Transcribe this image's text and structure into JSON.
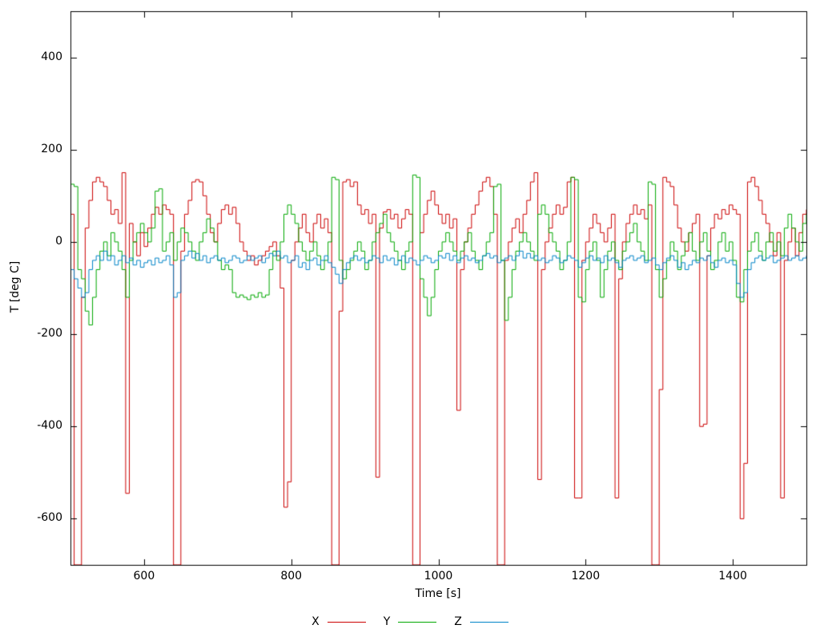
{
  "chart_data": {
    "type": "line",
    "title": "",
    "xlabel": "Time [s]",
    "ylabel": "T [deg C]",
    "xlim": [
      500,
      1500
    ],
    "ylim": [
      -700,
      500
    ],
    "x_ticks": [
      600,
      800,
      1000,
      1200,
      1400
    ],
    "y_ticks": [
      -600,
      -400,
      -200,
      0,
      200,
      400
    ],
    "grid": false,
    "legend_position": "bottom-center",
    "line_style": "steps",
    "x_start": 500,
    "x_step": 5,
    "series": [
      {
        "name": "X",
        "color": "#cc0000",
        "values": [
          60,
          -700,
          -700,
          -120,
          30,
          90,
          130,
          140,
          130,
          120,
          90,
          60,
          70,
          40,
          150,
          -545,
          40,
          0,
          -30,
          20,
          -10,
          30,
          60,
          75,
          60,
          80,
          70,
          60,
          -700,
          -700,
          -20,
          60,
          90,
          130,
          135,
          130,
          100,
          60,
          20,
          0,
          40,
          70,
          80,
          60,
          75,
          40,
          0,
          -20,
          -40,
          -30,
          -50,
          -40,
          -30,
          -20,
          -10,
          0,
          -30,
          -100,
          -575,
          -520,
          -40,
          0,
          30,
          60,
          20,
          0,
          40,
          60,
          30,
          50,
          20,
          -700,
          -700,
          -150,
          130,
          135,
          120,
          130,
          80,
          60,
          70,
          40,
          60,
          -510,
          30,
          65,
          70,
          50,
          60,
          30,
          50,
          70,
          60,
          -700,
          -700,
          20,
          60,
          90,
          110,
          80,
          60,
          40,
          60,
          30,
          50,
          -365,
          -60,
          0,
          30,
          60,
          80,
          110,
          130,
          140,
          120,
          60,
          -700,
          -700,
          -40,
          0,
          30,
          50,
          20,
          60,
          90,
          130,
          150,
          -515,
          -60,
          0,
          30,
          60,
          80,
          60,
          75,
          130,
          140,
          -555,
          -555,
          -40,
          0,
          30,
          60,
          40,
          20,
          0,
          30,
          60,
          -555,
          -80,
          0,
          40,
          60,
          80,
          60,
          70,
          50,
          80,
          -700,
          -700,
          -320,
          140,
          130,
          120,
          80,
          30,
          0,
          -20,
          20,
          40,
          60,
          -400,
          -395,
          -30,
          30,
          60,
          50,
          70,
          60,
          80,
          70,
          60,
          -600,
          -480,
          130,
          140,
          120,
          90,
          60,
          40,
          0,
          -30,
          20,
          -555,
          -40,
          0,
          30,
          -30,
          20,
          60,
          70
        ]
      },
      {
        "name": "Y",
        "color": "#00a800",
        "values": [
          125,
          120,
          -60,
          -80,
          -150,
          -180,
          -120,
          -60,
          -20,
          0,
          -30,
          20,
          0,
          -20,
          -60,
          -120,
          -40,
          0,
          20,
          40,
          20,
          0,
          30,
          110,
          115,
          -20,
          0,
          20,
          -40,
          0,
          30,
          20,
          0,
          -20,
          -40,
          0,
          20,
          50,
          30,
          0,
          -40,
          -60,
          -50,
          -60,
          -110,
          -120,
          -115,
          -120,
          -125,
          -115,
          -120,
          -110,
          -120,
          -115,
          -60,
          -20,
          -40,
          0,
          60,
          80,
          60,
          40,
          0,
          -20,
          -40,
          -20,
          0,
          -30,
          -60,
          -40,
          0,
          140,
          135,
          -40,
          -80,
          -60,
          -40,
          -20,
          0,
          -20,
          -60,
          -40,
          0,
          20,
          40,
          60,
          20,
          0,
          -20,
          -40,
          -60,
          -20,
          0,
          145,
          140,
          -80,
          -120,
          -160,
          -120,
          -60,
          -20,
          0,
          20,
          0,
          -20,
          -40,
          -20,
          0,
          20,
          -20,
          -40,
          -60,
          -30,
          0,
          20,
          120,
          125,
          -40,
          -170,
          -120,
          -60,
          -20,
          0,
          20,
          0,
          -20,
          -40,
          60,
          80,
          60,
          20,
          0,
          -20,
          -60,
          -40,
          0,
          140,
          135,
          -120,
          -130,
          -60,
          -20,
          0,
          -40,
          -120,
          -60,
          -20,
          0,
          -40,
          -60,
          -20,
          0,
          20,
          40,
          0,
          -20,
          -40,
          130,
          125,
          -60,
          -120,
          -80,
          -40,
          0,
          -20,
          -60,
          -30,
          0,
          20,
          -20,
          -40,
          0,
          20,
          -20,
          -60,
          -40,
          0,
          20,
          -20,
          0,
          -40,
          -120,
          -130,
          -60,
          -20,
          0,
          20,
          -20,
          -40,
          0,
          20,
          -20,
          0,
          -30,
          30,
          60,
          30,
          0,
          -20,
          40,
          60
        ]
      },
      {
        "name": "Z",
        "color": "#0084c8",
        "values": [
          -60,
          -80,
          -100,
          -120,
          -110,
          -60,
          -40,
          -30,
          -40,
          -20,
          -40,
          -30,
          -50,
          -40,
          -30,
          -45,
          -35,
          -50,
          -40,
          -55,
          -45,
          -40,
          -50,
          -35,
          -45,
          -40,
          -30,
          -50,
          -120,
          -110,
          -40,
          -30,
          -20,
          -35,
          -25,
          -40,
          -30,
          -45,
          -35,
          -30,
          -40,
          -35,
          -45,
          -40,
          -30,
          -35,
          -45,
          -40,
          -30,
          -40,
          -35,
          -30,
          -45,
          -35,
          -25,
          -30,
          -20,
          -35,
          -30,
          -45,
          -40,
          -30,
          -55,
          -45,
          -60,
          -40,
          -35,
          -50,
          -40,
          -30,
          -45,
          -55,
          -70,
          -90,
          -60,
          -45,
          -35,
          -30,
          -40,
          -35,
          -45,
          -40,
          -30,
          -35,
          -45,
          -30,
          -40,
          -35,
          -50,
          -40,
          -30,
          -45,
          -35,
          -40,
          -50,
          -40,
          -30,
          -35,
          -45,
          -40,
          -30,
          -35,
          -25,
          -40,
          -30,
          -45,
          -35,
          -30,
          -40,
          -35,
          -45,
          -40,
          -30,
          -25,
          -35,
          -30,
          -45,
          -40,
          -35,
          -30,
          -40,
          -30,
          -20,
          -35,
          -25,
          -35,
          -30,
          -40,
          -35,
          -45,
          -40,
          -30,
          -35,
          -45,
          -40,
          -30,
          -35,
          -40,
          -55,
          -45,
          -35,
          -30,
          -40,
          -35,
          -45,
          -30,
          -40,
          -35,
          -45,
          -55,
          -40,
          -35,
          -30,
          -40,
          -35,
          -30,
          -45,
          -40,
          -35,
          -50,
          -60,
          -45,
          -35,
          -30,
          -40,
          -55,
          -45,
          -60,
          -50,
          -40,
          -45,
          -35,
          -40,
          -30,
          -45,
          -55,
          -40,
          -35,
          -45,
          -40,
          -50,
          -90,
          -120,
          -110,
          -60,
          -45,
          -35,
          -30,
          -40,
          -35,
          -30,
          -45,
          -40,
          -35,
          -30,
          -40,
          -35,
          -30,
          -40,
          -35,
          -30
        ]
      }
    ]
  }
}
